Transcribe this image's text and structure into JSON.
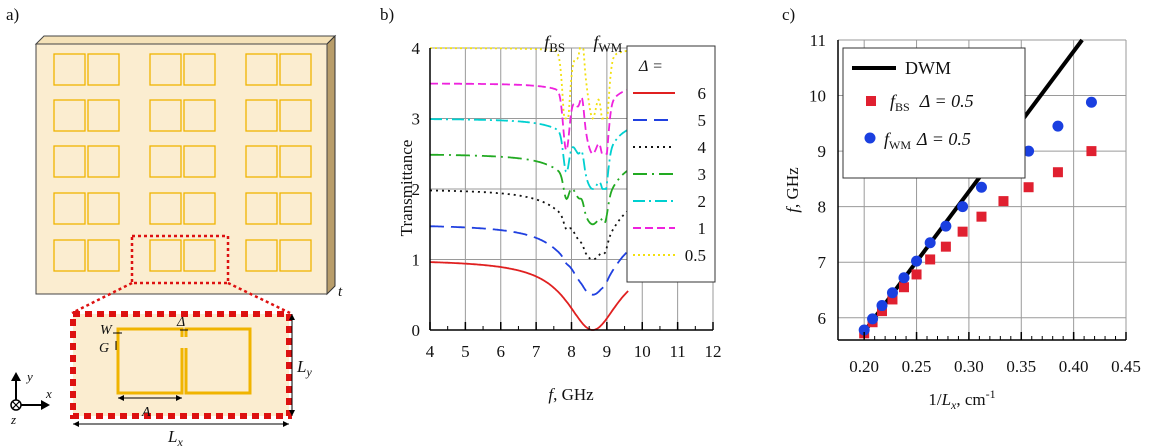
{
  "colors": {
    "cell_fill": "#fbedd0",
    "resonator": "#f0b400",
    "dashed_frame": "#dd1111",
    "slab_edge": "#3a3a3a"
  },
  "panel_a": {
    "label": "a)",
    "labels": {
      "t": "t",
      "W": "W",
      "G": "G",
      "Delta": "Δ",
      "A": "A",
      "Ly_main": "L",
      "Ly_sub": "y",
      "Lx_main": "L",
      "Lx_sub": "x"
    },
    "axes_triad": {
      "y": "y",
      "x": "x",
      "z": "z"
    },
    "grid": {
      "columns": 3,
      "rows": 5
    }
  },
  "chart_data": [
    {
      "type": "line",
      "panel_label": "b)",
      "xlabel_italic": "f",
      "xlabel_rest": ", GHz",
      "ylabel": "Transmittance",
      "xlim": [
        4,
        12
      ],
      "ylim": [
        0,
        4
      ],
      "x_ticks": [
        "4",
        "5",
        "6",
        "7",
        "8",
        "9",
        "10",
        "11",
        "12"
      ],
      "y_ticks": [
        "0",
        "1",
        "2",
        "3",
        "4"
      ],
      "grid": true,
      "annotations": [
        {
          "main": "f",
          "sub": "BS",
          "x": 7.85
        },
        {
          "main": "f",
          "sub": "WM",
          "x": 8.9
        }
      ],
      "legend_title": "Δ =",
      "legend_placement": "right",
      "series": [
        {
          "name": "6",
          "color": "#e02020",
          "dash": "",
          "offset": 0.0,
          "low": 0.0
        },
        {
          "name": "5",
          "color": "#2040e0",
          "dash": "14,7",
          "offset": 0.5,
          "low": 0.5
        },
        {
          "name": "4",
          "color": "#111111",
          "dash": "2,4",
          "offset": 1.0,
          "low": 0.9
        },
        {
          "name": "3",
          "color": "#22aa22",
          "dash": "14,5,2,5",
          "offset": 1.5,
          "low": 1.45
        },
        {
          "name": "2",
          "color": "#00d0d0",
          "dash": "12,4,2,4",
          "offset": 2.0,
          "low": 1.95
        },
        {
          "name": "1",
          "color": "#ee22dd",
          "dash": "8,4",
          "offset": 2.5,
          "low": 2.5
        },
        {
          "name": "0.5",
          "color": "#f2e010",
          "dash": "2,3",
          "offset": 3.0,
          "low": 2.98
        }
      ]
    },
    {
      "type": "scatter",
      "panel_label": "c)",
      "xlabel_main": "1/",
      "xlabel_var": "L",
      "xlabel_sub": "x",
      "xlabel_rest": ", cm",
      "xlabel_sup": "-1",
      "ylabel_italic": "f",
      "ylabel_rest": ", GHz",
      "xlim": [
        0.175,
        0.45
      ],
      "ylim": [
        5.6,
        11
      ],
      "x_ticks": [
        "0.20",
        "0.25",
        "0.30",
        "0.35",
        "0.40",
        "0.45"
      ],
      "y_ticks": [
        "6",
        "7",
        "8",
        "9",
        "10",
        "11"
      ],
      "grid": true,
      "legend_placement": "top-left",
      "line": {
        "name": "DWM",
        "color": "#000000",
        "x": [
          0.2,
          0.42
        ],
        "y": [
          5.75,
          11.3
        ]
      },
      "series": [
        {
          "name_main": "f",
          "name_sub": "BS",
          "name_rest": "Δ = 0.5",
          "color": "#e02030",
          "marker": "square",
          "x": [
            0.2,
            0.208,
            0.217,
            0.227,
            0.238,
            0.25,
            0.263,
            0.278,
            0.294,
            0.312,
            0.333,
            0.357,
            0.385,
            0.417
          ],
          "y": [
            5.72,
            5.92,
            6.12,
            6.33,
            6.55,
            6.78,
            7.05,
            7.28,
            7.55,
            7.82,
            8.1,
            8.35,
            8.62,
            9.0
          ]
        },
        {
          "name_main": "f",
          "name_sub": "WM",
          "name_rest": "Δ = 0.5",
          "color": "#1a3fe0",
          "marker": "circle",
          "x": [
            0.2,
            0.208,
            0.217,
            0.227,
            0.238,
            0.25,
            0.263,
            0.278,
            0.294,
            0.312,
            0.333,
            0.357,
            0.385,
            0.417
          ],
          "y": [
            5.78,
            5.98,
            6.22,
            6.45,
            6.72,
            7.02,
            7.35,
            7.65,
            8.0,
            8.35,
            8.7,
            9.0,
            9.45,
            9.88
          ]
        }
      ]
    }
  ]
}
